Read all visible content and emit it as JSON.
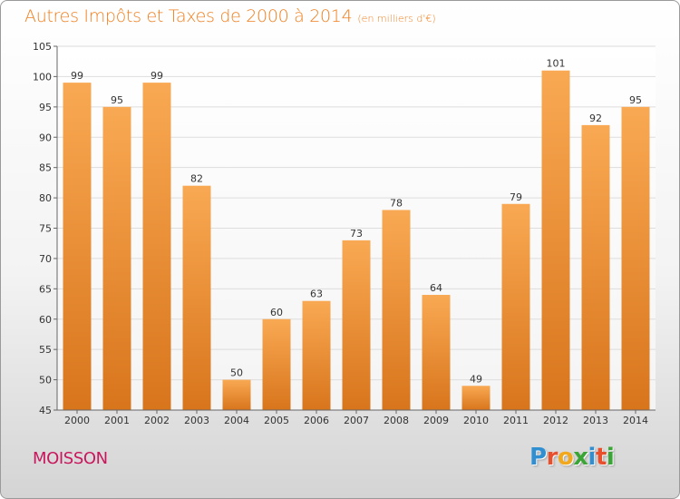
{
  "header": {
    "title": "Autres Impôts et Taxes de 2000 à 2014",
    "unit": "(en milliers d'€)"
  },
  "location": "MOISSON",
  "logo": {
    "name": "Proxiti",
    "letters": [
      {
        "char": "P",
        "color": "#2f8fd1"
      },
      {
        "char": "r",
        "color": "#e84f2c"
      },
      {
        "char": "o",
        "color": "#f2a81d"
      },
      {
        "char": "x",
        "color": "#3aa536"
      },
      {
        "char": "i",
        "color": "#2f8fd1"
      },
      {
        "char": "t",
        "color": "#e84f2c"
      },
      {
        "char": "i",
        "color": "#3aa536"
      }
    ]
  },
  "colors": {
    "bar_light": "#f9a953",
    "bar_dark": "#d8751c",
    "title": "#f07f1e",
    "location": "#c8175d"
  },
  "chart_data": {
    "type": "bar",
    "title": "Autres Impôts et Taxes de 2000 à 2014",
    "subtitle": "(en milliers d'€)",
    "xlabel": "",
    "ylabel": "",
    "categories": [
      "2000",
      "2001",
      "2002",
      "2003",
      "2004",
      "2005",
      "2006",
      "2007",
      "2008",
      "2009",
      "2010",
      "2011",
      "2012",
      "2013",
      "2014"
    ],
    "values": [
      99,
      95,
      99,
      82,
      50,
      60,
      63,
      73,
      78,
      64,
      49,
      79,
      101,
      92,
      95
    ],
    "ylim": [
      45,
      105
    ],
    "yticks": [
      45,
      50,
      55,
      60,
      65,
      70,
      75,
      80,
      85,
      90,
      95,
      100,
      105
    ],
    "grid": true,
    "legend": "none"
  }
}
